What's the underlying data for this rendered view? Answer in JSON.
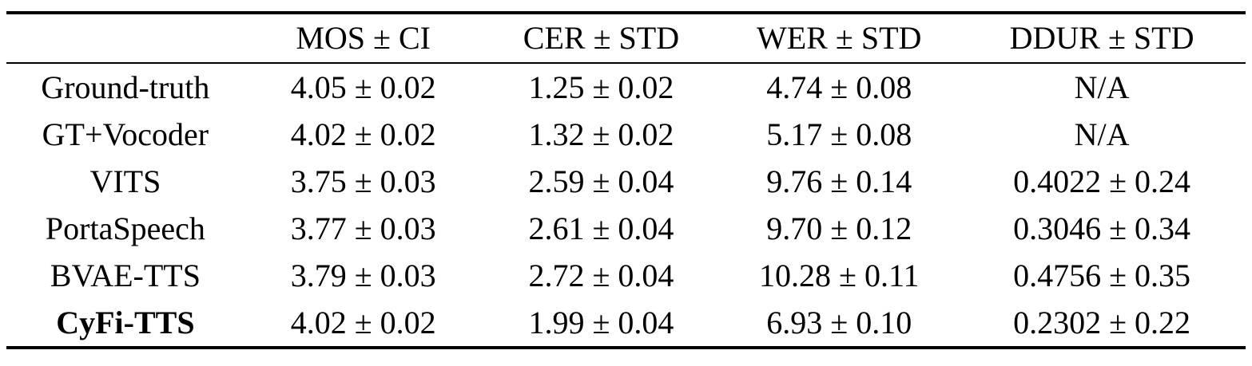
{
  "table": {
    "headers": {
      "model": "",
      "mos": "MOS ± CI",
      "cer": "CER ± STD",
      "wer": "WER ± STD",
      "ddur": "DDUR ± STD"
    },
    "rows": [
      {
        "model": "Ground-truth",
        "mos": "4.05 ± 0.02",
        "cer": "1.25 ± 0.02",
        "wer": "4.74 ± 0.08",
        "ddur": "N/A"
      },
      {
        "model": "GT+Vocoder",
        "mos": "4.02 ± 0.02",
        "cer": "1.32 ± 0.02",
        "wer": "5.17 ± 0.08",
        "ddur": "N/A"
      },
      {
        "model": "VITS",
        "mos": "3.75 ± 0.03",
        "cer": "2.59 ± 0.04",
        "wer": "9.76 ± 0.14",
        "ddur": "0.4022 ± 0.24"
      },
      {
        "model": "PortaSpeech",
        "mos": "3.77 ± 0.03",
        "cer": "2.61 ± 0.04",
        "wer": "9.70 ± 0.12",
        "ddur": "0.3046 ± 0.34"
      },
      {
        "model": "BVAE-TTS",
        "mos": "3.79 ± 0.03",
        "cer": "2.72 ± 0.04",
        "wer": "10.28 ± 0.11",
        "ddur": "0.4756 ± 0.35"
      },
      {
        "model": "CyFi-TTS",
        "mos": "4.02 ± 0.02",
        "cer": "1.99 ± 0.04",
        "wer": "6.93 ± 0.10",
        "ddur": "0.2302 ± 0.22"
      }
    ]
  }
}
